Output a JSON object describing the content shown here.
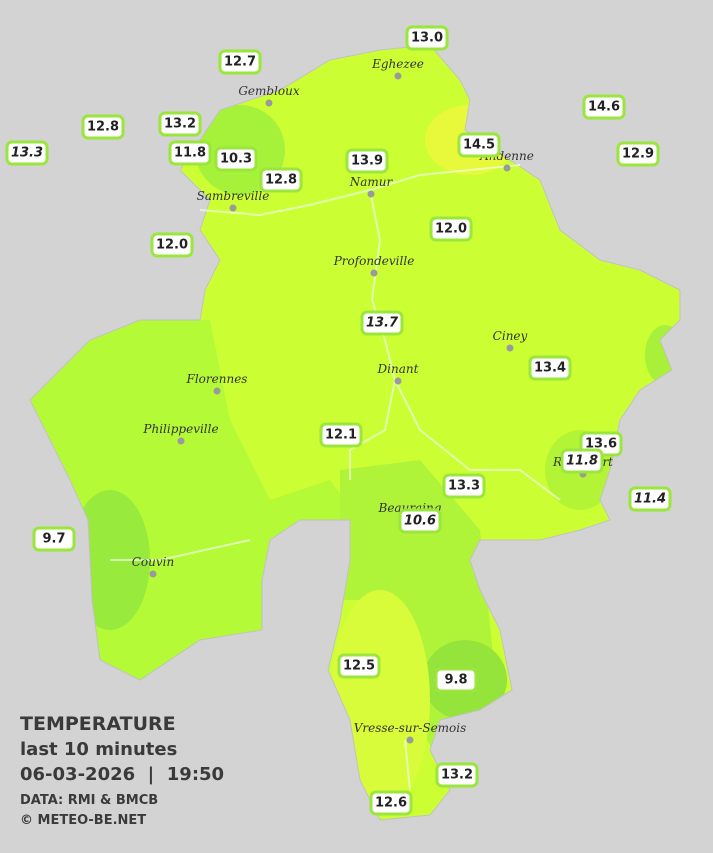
{
  "legend": {
    "title": "TEMPERATURE",
    "subtitle": "last 10 minutes",
    "timestamp": "06-03-2026  |  19:50",
    "source": "DATA: RMI & BMCB",
    "copyright": "© METEO-BE.NET"
  },
  "cities": [
    "Eghezee",
    "Gembloux",
    "Andenne",
    "Namur",
    "Sambreville",
    "Profondeville",
    "Ciney",
    "Dinant",
    "Florennes",
    "Philippeville",
    "Rochefort",
    "Beauraing",
    "Couvin",
    "Vresse-sur-Semois"
  ],
  "stations": [
    "13.0",
    "12.7",
    "14.6",
    "12.8",
    "13.2",
    "14.5",
    "13.3",
    "11.8",
    "10.3",
    "13.9",
    "12.9",
    "12.8",
    "12.0",
    "12.0",
    "13.7",
    "13.4",
    "12.1",
    "13.6",
    "11.8",
    "11.4",
    "13.3",
    "10.6",
    "9.7",
    "12.5",
    "9.8",
    "13.2",
    "12.6"
  ]
}
